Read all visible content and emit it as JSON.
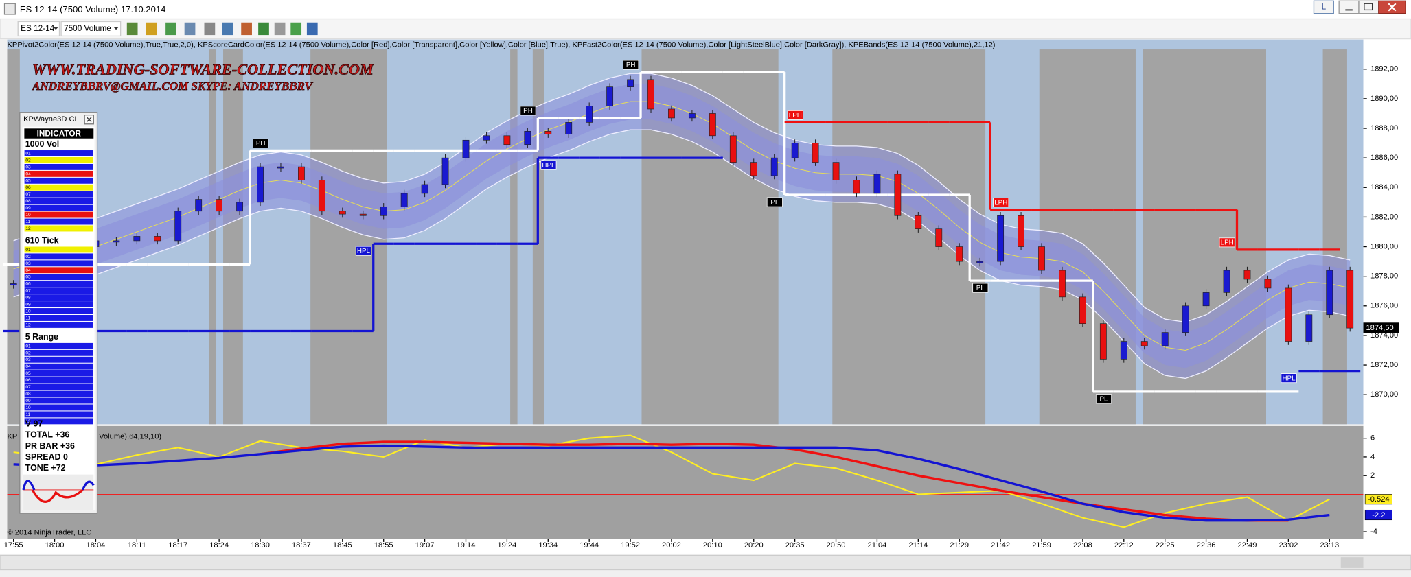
{
  "window": {
    "title": "ES 12-14 (7500 Volume)  17.10.2014",
    "button": "L"
  },
  "toolbar": {
    "instrument": "ES 12-14",
    "interval": "7500 Volume"
  },
  "indicator_list": "KPPivot2Color(ES 12-14 (7500 Volume),True,True,2,0), KPScoreCardColor(ES 12-14 (7500 Volume),Color [Red],Color [Transparent],Color [Yellow],Color [Blue],True), KPFast2Color(ES 12-14 (7500 Volume),Color [LightSteelBlue],Color [DarkGray]), KPEBands(ES 12-14 (7500 Volume),21,12)",
  "watermark": [
    "WWW.TRADING-SOFTWARE-COLLECTION.COM",
    "ANDREYBBRV@GMAIL.COM    SKYPE: ANDREYBBRV"
  ],
  "copyright": "© 2014 NinjaTrader, LLC",
  "panel": {
    "title": "KPWayne3D CL",
    "header": "INDICATOR",
    "sections": [
      {
        "title": "1000 Vol",
        "rows": [
          {
            "label": "01",
            "color": "#1a1ae6"
          },
          {
            "label": "02",
            "color": "#f0f000"
          },
          {
            "label": "03",
            "color": "#1a1ae6"
          },
          {
            "label": "04",
            "color": "#e81010"
          },
          {
            "label": "05",
            "color": "#1a1ae6"
          },
          {
            "label": "06",
            "color": "#f0f000"
          },
          {
            "label": "07",
            "color": "#1a1ae6"
          },
          {
            "label": "08",
            "color": "#1a1ae6"
          },
          {
            "label": "09",
            "color": "#1a1ae6"
          },
          {
            "label": "10",
            "color": "#e81010"
          },
          {
            "label": "11",
            "color": "#1a1ae6"
          },
          {
            "label": "12",
            "color": "#f0f000"
          }
        ]
      },
      {
        "title": "610 Tick",
        "rows": [
          {
            "label": "01",
            "color": "#f0f000"
          },
          {
            "label": "02",
            "color": "#1a1ae6"
          },
          {
            "label": "03",
            "color": "#1a1ae6"
          },
          {
            "label": "04",
            "color": "#e81010"
          },
          {
            "label": "05",
            "color": "#1a1ae6"
          },
          {
            "label": "06",
            "color": "#1a1ae6"
          },
          {
            "label": "07",
            "color": "#1a1ae6"
          },
          {
            "label": "08",
            "color": "#1a1ae6"
          },
          {
            "label": "09",
            "color": "#1a1ae6"
          },
          {
            "label": "10",
            "color": "#1a1ae6"
          },
          {
            "label": "11",
            "color": "#1a1ae6"
          },
          {
            "label": "12",
            "color": "#1a1ae6"
          }
        ]
      },
      {
        "title": "5 Range",
        "rows": [
          {
            "label": "01",
            "color": "#1a1ae6"
          },
          {
            "label": "02",
            "color": "#1a1ae6"
          },
          {
            "label": "03",
            "color": "#1a1ae6"
          },
          {
            "label": "04",
            "color": "#1a1ae6"
          },
          {
            "label": "05",
            "color": "#1a1ae6"
          },
          {
            "label": "06",
            "color": "#1a1ae6"
          },
          {
            "label": "07",
            "color": "#1a1ae6"
          },
          {
            "label": "08",
            "color": "#1a1ae6"
          },
          {
            "label": "09",
            "color": "#1a1ae6"
          },
          {
            "label": "10",
            "color": "#1a1ae6"
          },
          {
            "label": "11",
            "color": "#1a1ae6"
          },
          {
            "label": "12",
            "color": "#1a1ae6"
          }
        ]
      }
    ],
    "stats": [
      "V 97",
      "TOTAL +36",
      "PR BAR +36",
      "SPREAD 0",
      "TONE +72"
    ]
  },
  "chart_data": [
    {
      "type": "candlestick",
      "candles": [
        1877.5,
        1879,
        1879.3,
        1880,
        1880.4,
        1880.4,
        1880.7,
        1880.4,
        1882.4,
        1883.2,
        1882.4,
        1883,
        1885.4,
        1885.4,
        1884.5,
        1882.4,
        1882.2,
        1882.1,
        1882.7,
        1883.6,
        1884.2,
        1886,
        1887.2,
        1887.5,
        1886.9,
        1887.8,
        1887.6,
        1888.4,
        1889.5,
        1890.8,
        1891.3,
        1889.3,
        1888.7,
        1889,
        1887.5,
        1885.7,
        1884.8,
        1886,
        1887,
        1885.7,
        1884.5,
        1883.6,
        1884.9,
        1882.1,
        1881.2,
        1880,
        1879,
        1879,
        1882.1,
        1880,
        1878.4,
        1876.6,
        1874.8,
        1872.4,
        1873.6,
        1873.3,
        1874.2,
        1876,
        1876.9,
        1878.4,
        1877.8,
        1877.2,
        1873.6,
        1875.4,
        1878.4,
        1874.5
      ],
      "up_color": "#1a1ad0",
      "down_color": "#e81010",
      "band_mid": [
        1878.5,
        1879,
        1879.3,
        1879.7,
        1880,
        1880.5,
        1881,
        1881.5,
        1882,
        1882.6,
        1883.2,
        1883.8,
        1884.3,
        1884.5,
        1884.3,
        1883.8,
        1883.2,
        1882.7,
        1882.4,
        1882.5,
        1883,
        1883.8,
        1884.8,
        1885.8,
        1886.6,
        1887.3,
        1887.9,
        1888.4,
        1889,
        1889.5,
        1889.8,
        1889.8,
        1889.5,
        1889,
        1888.3,
        1887.4,
        1886.5,
        1885.8,
        1885.3,
        1885,
        1884.9,
        1884.9,
        1884.8,
        1884.4,
        1883.6,
        1882.5,
        1881.3,
        1880.3,
        1879.6,
        1879.3,
        1879.2,
        1879,
        1878.3,
        1877,
        1875.5,
        1874,
        1873.2,
        1873,
        1873.5,
        1874.4,
        1875.4,
        1876.4,
        1877.2,
        1877.6,
        1877.5,
        1877.2
      ],
      "band_inner": 1.2,
      "band_outer": 1.9,
      "band_color": "#8c90dc",
      "mid_color": "#e6dc5a",
      "pivots": [
        {
          "color": "#ffffff",
          "values": [
            1878.8,
            1878.8,
            1878.8,
            1878.8,
            1878.8,
            1878.8,
            1878.8,
            1878.8,
            1878.8,
            1878.8,
            1878.8,
            1878.8,
            1886.5,
            1886.5,
            1886.5,
            1886.5,
            1886.5,
            1886.5,
            1886.5,
            1886.5,
            1886.5,
            1886.5,
            1886.5,
            1886.5,
            1886.5,
            1886.5,
            1888.7,
            1888.7,
            1888.7,
            1888.7,
            1888.7,
            1891.8,
            1891.8,
            1891.8,
            1891.8,
            1891.8,
            1891.8,
            1891.8,
            1883.5,
            1883.5,
            1883.5,
            1883.5,
            1883.5,
            1883.5,
            1883.5,
            1883.5,
            1883.5,
            1877.7,
            1877.7,
            1877.7,
            1877.7,
            1877.7,
            1877.7,
            1870.2,
            1870.2,
            1870.2,
            1870.2,
            1870.2,
            1870.2,
            1870.2,
            1870.2,
            1870.2,
            1870.2,
            null,
            null,
            null
          ]
        },
        {
          "color": "#1414d2",
          "values": [
            1874.3,
            1874.3,
            1874.3,
            1874.3,
            1874.3,
            1874.3,
            1874.3,
            1874.3,
            1874.3,
            1874.3,
            1874.3,
            1874.3,
            1874.3,
            1874.3,
            1874.3,
            1874.3,
            1874.3,
            1874.3,
            1880.2,
            1880.2,
            1880.2,
            1880.2,
            1880.2,
            1880.2,
            1880.2,
            1880.2,
            1886,
            1886,
            1886,
            1886,
            1886,
            1886,
            1886,
            1886,
            1886,
            null,
            null,
            null,
            null,
            null,
            null,
            null,
            null,
            null,
            null,
            null,
            null,
            null,
            null,
            null,
            null,
            null,
            null,
            null,
            null,
            null,
            null,
            null,
            null,
            null,
            null,
            null,
            null,
            1871.6,
            1871.6,
            1871.6
          ]
        },
        {
          "color": "#ee1111",
          "values": [
            null,
            null,
            null,
            null,
            null,
            null,
            null,
            null,
            null,
            null,
            null,
            null,
            null,
            null,
            null,
            null,
            null,
            null,
            null,
            null,
            null,
            null,
            null,
            null,
            null,
            null,
            null,
            null,
            null,
            null,
            null,
            null,
            null,
            null,
            null,
            null,
            null,
            null,
            1888.4,
            1888.4,
            1888.4,
            1888.4,
            1888.4,
            1888.4,
            1888.4,
            1888.4,
            1888.4,
            1888.4,
            1882.5,
            1882.5,
            1882.5,
            1882.5,
            1882.5,
            1882.5,
            1882.5,
            1882.5,
            1882.5,
            1882.5,
            1882.5,
            1882.5,
            1879.8,
            1879.8,
            1879.8,
            1879.8,
            1879.8,
            null
          ]
        }
      ],
      "markers": [
        {
          "label": "PH",
          "index": 12,
          "price": 1886.5,
          "color": "#000000",
          "position": "above"
        },
        {
          "label": "PH",
          "index": 25,
          "price": 1888.7,
          "color": "#000000",
          "position": "above"
        },
        {
          "label": "PH",
          "index": 30,
          "price": 1891.8,
          "color": "#000000",
          "position": "above"
        },
        {
          "label": "HPL",
          "index": 17,
          "price": 1880.2,
          "color": "#1414d2",
          "position": "below"
        },
        {
          "label": "HPL",
          "index": 26,
          "price": 1886,
          "color": "#1414d2",
          "position": "below"
        },
        {
          "label": "PL",
          "index": 37,
          "price": 1883.5,
          "color": "#000000",
          "position": "below"
        },
        {
          "label": "LPH",
          "index": 38,
          "price": 1888.4,
          "color": "#ee1111",
          "position": "above"
        },
        {
          "label": "LPH",
          "index": 48,
          "price": 1882.5,
          "color": "#ee1111",
          "position": "above"
        },
        {
          "label": "LPH",
          "index": 59,
          "price": 1879.8,
          "color": "#ee1111",
          "position": "above"
        },
        {
          "label": "PL",
          "index": 47,
          "price": 1877.7,
          "color": "#000000",
          "position": "below"
        },
        {
          "label": "PL",
          "index": 53,
          "price": 1870.2,
          "color": "#000000",
          "position": "below"
        },
        {
          "label": "HPL",
          "index": 62,
          "price": 1871.6,
          "color": "#1414d2",
          "position": "below"
        }
      ],
      "ylim": [
        1868,
        1894
      ],
      "yticks": [
        {
          "value": 1870,
          "label": "1870,00"
        },
        {
          "value": 1872,
          "label": "1872,00"
        },
        {
          "value": 1874,
          "label": "1874,00"
        },
        {
          "value": 1876,
          "label": "1876,00"
        },
        {
          "value": 1878,
          "label": "1878,00"
        },
        {
          "value": 1880,
          "label": "1880,00"
        },
        {
          "value": 1882,
          "label": "1882,00"
        },
        {
          "value": 1884,
          "label": "1884,00"
        },
        {
          "value": 1886,
          "label": "1886,00"
        },
        {
          "value": 1888,
          "label": "1888,00"
        },
        {
          "value": 1890,
          "label": "1890,00"
        },
        {
          "value": 1892,
          "label": "1892,00"
        }
      ],
      "last": {
        "value": 1874.5,
        "label": "1874,50"
      }
    },
    {
      "type": "line",
      "labels": [
        "KP",
        "Volume),64,19,10)"
      ],
      "categories": [
        "17:55",
        "18:00",
        "18:04",
        "18:11",
        "18:17",
        "18:24",
        "18:30",
        "18:37",
        "18:45",
        "18:55",
        "19:07",
        "19:14",
        "19:24",
        "19:34",
        "19:44",
        "19:52",
        "20:02",
        "20:10",
        "20:20",
        "20:35",
        "20:50",
        "21:04",
        "21:14",
        "21:29",
        "21:42",
        "21:59",
        "22:08",
        "22:12",
        "22:25",
        "22:36",
        "22:49",
        "23:02",
        "23:13"
      ],
      "series": [
        {
          "color": "#ffee22",
          "box_text": "#000000",
          "values": [
            4.5,
            4.0,
            3.2,
            4.2,
            5.0,
            4.0,
            5.7,
            5.0,
            4.6,
            4.0,
            5.8,
            5.0,
            5.4,
            5.2,
            6.0,
            6.3,
            4.5,
            2.2,
            1.5,
            3.3,
            2.8,
            1.5,
            0,
            0.2,
            0.4,
            -1.0,
            -2.5,
            -3.5,
            -2.0,
            -1.0,
            -0.3,
            -2.8,
            -0.524
          ]
        },
        {
          "color": "#ee1111",
          "values": [
            null,
            null,
            null,
            null,
            null,
            null,
            4.3,
            4.9,
            5.4,
            5.6,
            5.6,
            5.5,
            5.4,
            5.3,
            5.3,
            5.4,
            5.3,
            5.4,
            5.3,
            4.8,
            4.0,
            3.0,
            2.0,
            1.2,
            0.4,
            -0.3,
            -1.0,
            -1.6,
            -2.2,
            -2.6,
            -2.8,
            -2.8,
            null
          ]
        },
        {
          "color": "#1414d2",
          "box_text": "#ffffff",
          "values": [
            3.2,
            3.0,
            3.1,
            3.3,
            3.6,
            3.9,
            4.3,
            4.7,
            5.1,
            5.2,
            5.1,
            5.0,
            5.0,
            5.0,
            5.0,
            5.0,
            5.0,
            5.0,
            5.0,
            5.0,
            5.0,
            4.7,
            3.8,
            2.7,
            1.5,
            0.3,
            -1.0,
            -1.9,
            -2.5,
            -2.8,
            -2.8,
            -2.7,
            -2.2
          ]
        }
      ],
      "ylim": [
        -4.8,
        7.3
      ],
      "yticks": [
        6,
        4,
        2,
        -4
      ],
      "zero_line": 0,
      "zero_color": "#ee2222"
    }
  ]
}
